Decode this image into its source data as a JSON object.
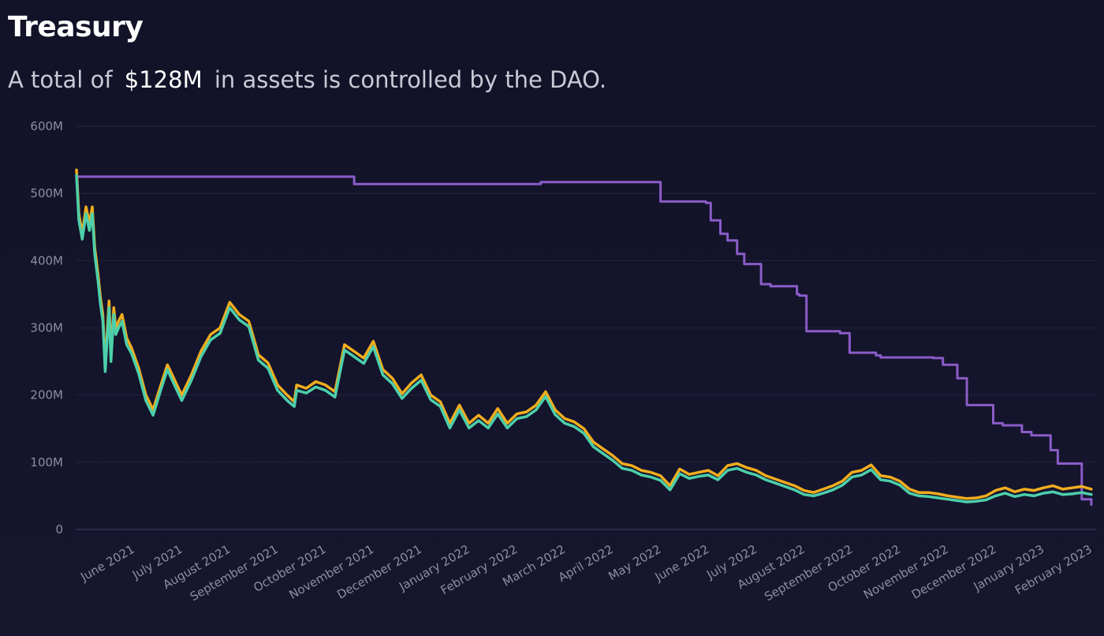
{
  "header": {
    "title": "Treasury",
    "subtitle_prefix": "A total of",
    "subtitle_amount": "$128M",
    "subtitle_suffix": "in assets is controlled by the DAO."
  },
  "colors": {
    "background": "#13132a",
    "purple": "#8a5cc7",
    "orange": "#f2ad1e",
    "teal": "#4ccfaa",
    "grid": "#1f1f3a",
    "tick_text": "#8d8da3"
  },
  "chart_data": {
    "type": "line",
    "ylim": [
      0,
      600
    ],
    "ytick_labels": [
      "0",
      "100M",
      "200M",
      "300M",
      "400M",
      "500M",
      "600M"
    ],
    "ytick_values": [
      0,
      100,
      200,
      300,
      400,
      500,
      600
    ],
    "xlim": [
      0,
      21.3
    ],
    "xtick_labels": [
      "June 2021",
      "July 2021",
      "August 2021",
      "September 2021",
      "October 2021",
      "November 2021",
      "December 2021",
      "January 2022",
      "February 2022",
      "March 2022",
      "April 2022",
      "May 2022",
      "June 2022",
      "July 2022",
      "August 2022",
      "September 2022",
      "October 2022",
      "November 2022",
      "December 2022",
      "January 2023",
      "February 2023"
    ],
    "xtick_values": [
      1,
      2,
      3,
      4,
      5,
      6,
      7,
      8,
      9,
      10,
      11,
      12,
      13,
      14,
      15,
      16,
      17,
      18,
      19,
      20,
      21
    ],
    "grid": true,
    "legend": "none",
    "series": [
      {
        "color": "#8a5cc7",
        "x": [
          0,
          5.7,
          5.8,
          9.6,
          9.7,
          12.15,
          12.2,
          13.15,
          13.25,
          13.45,
          13.6,
          13.8,
          13.95,
          14.3,
          14.5,
          15.05,
          15.1,
          15.25,
          15.95,
          16.15,
          16.7,
          16.8,
          17.9,
          18.1,
          18.4,
          18.6,
          19.15,
          19.35,
          19.75,
          19.95,
          20.35,
          20.5,
          21.0,
          21.2
        ],
        "y": [
          525,
          525,
          514,
          514,
          517,
          517,
          488,
          486,
          460,
          440,
          430,
          410,
          395,
          365,
          362,
          350,
          348,
          295,
          292,
          263,
          259,
          256,
          255,
          245,
          225,
          185,
          158,
          155,
          145,
          140,
          118,
          98,
          45,
          37
        ]
      },
      {
        "color": "#f2ad1e",
        "x": [
          0,
          0.05,
          0.12,
          0.2,
          0.27,
          0.33,
          0.38,
          0.45,
          0.5,
          0.55,
          0.6,
          0.68,
          0.72,
          0.78,
          0.82,
          0.88,
          0.95,
          1.05,
          1.15,
          1.3,
          1.45,
          1.6,
          1.75,
          1.9,
          2.0,
          2.2,
          2.4,
          2.6,
          2.8,
          3.0,
          3.2,
          3.4,
          3.6,
          3.8,
          4.0,
          4.2,
          4.4,
          4.55,
          4.6,
          4.8,
          5.0,
          5.2,
          5.4,
          5.6,
          5.8,
          6.0,
          6.2,
          6.4,
          6.6,
          6.8,
          7.0,
          7.2,
          7.4,
          7.6,
          7.8,
          8.0,
          8.2,
          8.4,
          8.6,
          8.8,
          9.0,
          9.2,
          9.4,
          9.6,
          9.8,
          10.0,
          10.2,
          10.4,
          10.6,
          10.8,
          11.0,
          11.2,
          11.4,
          11.6,
          11.8,
          12.0,
          12.2,
          12.4,
          12.6,
          12.8,
          13.0,
          13.2,
          13.4,
          13.6,
          13.8,
          14.0,
          14.2,
          14.4,
          14.6,
          14.8,
          15.0,
          15.2,
          15.4,
          15.6,
          15.8,
          16.0,
          16.2,
          16.4,
          16.6,
          16.8,
          17.0,
          17.2,
          17.4,
          17.6,
          17.8,
          18.0,
          18.2,
          18.4,
          18.6,
          18.8,
          19.0,
          19.2,
          19.4,
          19.6,
          19.8,
          20.0,
          20.2,
          20.4,
          20.6,
          20.8,
          21.0,
          21.2
        ],
        "y": [
          535,
          470,
          440,
          480,
          455,
          480,
          420,
          380,
          345,
          320,
          245,
          340,
          260,
          330,
          300,
          310,
          320,
          285,
          270,
          240,
          200,
          178,
          212,
          245,
          230,
          200,
          230,
          265,
          290,
          300,
          338,
          320,
          310,
          260,
          248,
          215,
          200,
          190,
          215,
          210,
          220,
          215,
          205,
          275,
          265,
          255,
          280,
          238,
          225,
          202,
          218,
          230,
          200,
          190,
          158,
          185,
          158,
          170,
          158,
          180,
          158,
          172,
          175,
          185,
          205,
          178,
          165,
          160,
          150,
          130,
          120,
          110,
          98,
          95,
          88,
          85,
          80,
          65,
          90,
          82,
          85,
          88,
          80,
          95,
          98,
          92,
          88,
          80,
          75,
          70,
          65,
          58,
          55,
          60,
          65,
          72,
          85,
          88,
          96,
          80,
          78,
          72,
          60,
          55,
          55,
          53,
          50,
          48,
          46,
          47,
          50,
          58,
          62,
          56,
          60,
          58,
          62,
          65,
          60,
          62,
          64,
          60
        ],
        "note_unused": ""
      },
      {
        "color": "#4ccfaa",
        "x": [
          0,
          0.05,
          0.12,
          0.2,
          0.27,
          0.33,
          0.38,
          0.45,
          0.5,
          0.55,
          0.6,
          0.68,
          0.72,
          0.78,
          0.82,
          0.88,
          0.95,
          1.05,
          1.15,
          1.3,
          1.45,
          1.6,
          1.75,
          1.9,
          2.0,
          2.2,
          2.4,
          2.6,
          2.8,
          3.0,
          3.2,
          3.4,
          3.6,
          3.8,
          4.0,
          4.2,
          4.4,
          4.55,
          4.6,
          4.8,
          5.0,
          5.2,
          5.4,
          5.6,
          5.8,
          6.0,
          6.2,
          6.4,
          6.6,
          6.8,
          7.0,
          7.2,
          7.4,
          7.6,
          7.8,
          8.0,
          8.2,
          8.4,
          8.6,
          8.8,
          9.0,
          9.2,
          9.4,
          9.6,
          9.8,
          10.0,
          10.2,
          10.4,
          10.6,
          10.8,
          11.0,
          11.2,
          11.4,
          11.6,
          11.8,
          12.0,
          12.2,
          12.4,
          12.6,
          12.8,
          13.0,
          13.2,
          13.4,
          13.6,
          13.8,
          14.0,
          14.2,
          14.4,
          14.6,
          14.8,
          15.0,
          15.2,
          15.4,
          15.6,
          15.8,
          16.0,
          16.2,
          16.4,
          16.6,
          16.8,
          17.0,
          17.2,
          17.4,
          17.6,
          17.8,
          18.0,
          18.2,
          18.4,
          18.6,
          18.8,
          19.0,
          19.2,
          19.4,
          19.6,
          19.8,
          20.0,
          20.2,
          20.4,
          20.6,
          20.8,
          21.0,
          21.2
        ],
        "y": [
          527,
          460,
          432,
          470,
          445,
          470,
          410,
          370,
          335,
          310,
          235,
          330,
          250,
          320,
          290,
          300,
          310,
          275,
          262,
          232,
          192,
          170,
          205,
          238,
          222,
          192,
          222,
          257,
          282,
          292,
          330,
          312,
          302,
          252,
          240,
          207,
          192,
          183,
          207,
          203,
          212,
          207,
          197,
          267,
          257,
          247,
          272,
          230,
          217,
          195,
          210,
          222,
          193,
          183,
          151,
          178,
          151,
          162,
          151,
          172,
          151,
          165,
          168,
          178,
          198,
          171,
          158,
          153,
          143,
          123,
          113,
          103,
          91,
          88,
          81,
          78,
          73,
          59,
          83,
          76,
          79,
          81,
          74,
          88,
          91,
          85,
          81,
          74,
          69,
          64,
          59,
          52,
          50,
          54,
          59,
          66,
          78,
          81,
          89,
          74,
          72,
          66,
          54,
          50,
          49,
          47,
          45,
          43,
          41,
          42,
          44,
          50,
          54,
          49,
          52,
          50,
          54,
          56,
          52,
          53,
          55,
          52
        ]
      }
    ]
  }
}
